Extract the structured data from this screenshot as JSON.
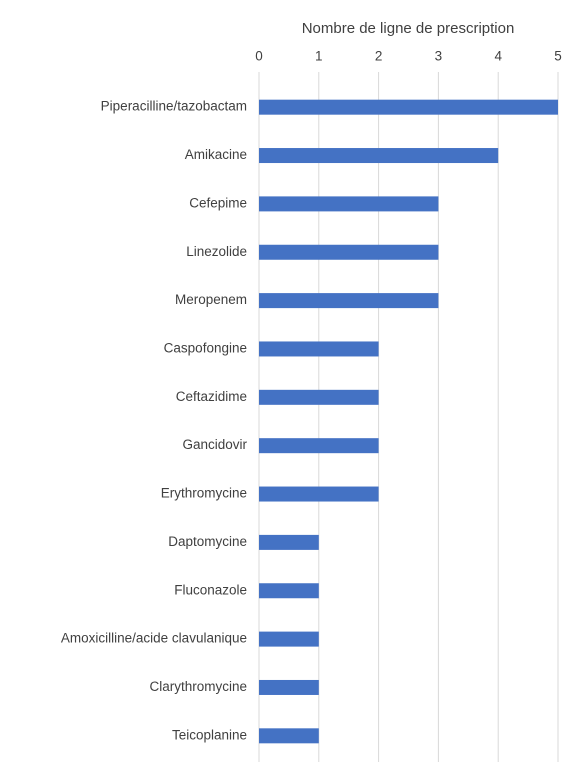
{
  "chart_data": {
    "type": "bar",
    "orientation": "horizontal",
    "xlabel": "Nombre de ligne de prescription",
    "categories": [
      "Piperacilline/tazobactam",
      "Amikacine",
      "Cefepime",
      "Linezolide",
      "Meropenem",
      "Caspofongine",
      "Ceftazidime",
      "Gancidovir",
      "Erythromycine",
      "Daptomycine",
      "Fluconazole",
      "Amoxicilline/acide clavulanique",
      "Clarythromycine",
      "Teicoplanine"
    ],
    "values": [
      5,
      4,
      3,
      3,
      3,
      2,
      2,
      2,
      2,
      1,
      1,
      1,
      1,
      1
    ],
    "color": "#4472c4",
    "xlim": [
      0,
      5
    ],
    "xticks": [
      0,
      1,
      2,
      3,
      4,
      5
    ],
    "grid": true
  }
}
